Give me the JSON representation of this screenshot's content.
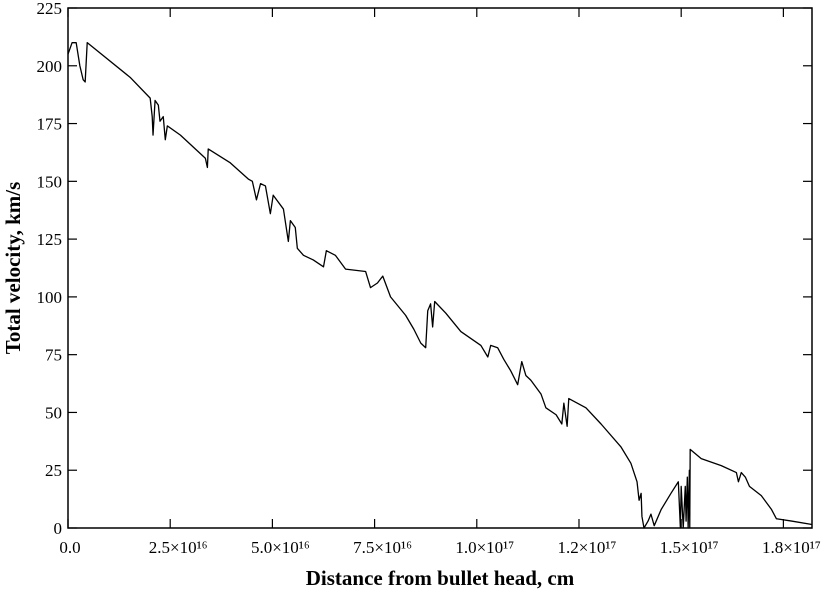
{
  "chart_data": {
    "type": "line",
    "x_label": "Distance from bullet head, cm",
    "y_label": "Total velocity, km/s",
    "color": "#000000",
    "xlim": [
      0,
      1.82e+17
    ],
    "ylim": [
      0,
      225
    ],
    "xticks": [
      {
        "value": 0,
        "label": "0.0"
      },
      {
        "value": 2.5e+16,
        "label": "2.5×10¹⁶"
      },
      {
        "value": 5e+16,
        "label": "5.0×10¹⁶"
      },
      {
        "value": 7.5e+16,
        "label": "7.5×10¹⁶"
      },
      {
        "value": 1e+17,
        "label": "1.0×10¹⁷"
      },
      {
        "value": 1.25e+17,
        "label": "1.2×10¹⁷"
      },
      {
        "value": 1.5e+17,
        "label": "1.5×10¹⁷"
      },
      {
        "value": 1.75e+17,
        "label": "1.8×10¹⁷"
      }
    ],
    "yticks": [
      0,
      25,
      50,
      75,
      100,
      125,
      150,
      175,
      200,
      225
    ],
    "x": [
      0,
      1000000000000000.0,
      2000000000000000.0,
      2900000000000000.0,
      3700000000000000.0,
      4200000000000000.0,
      4700000000000000.0,
      1.52e+16,
      2.01e+16,
      2.06e+16,
      2.08e+16,
      2.13e+16,
      2.21e+16,
      2.25e+16,
      2.33e+16,
      2.38e+16,
      2.43e+16,
      2.75e+16,
      3.36e+16,
      3.41e+16,
      3.43e+16,
      3.97e+16,
      4.41e+16,
      4.51e+16,
      4.61e+16,
      4.71e+16,
      4.83e+16,
      4.95e+16,
      5.02e+16,
      5.27e+16,
      5.39e+16,
      5.44e+16,
      5.56e+16,
      5.61e+16,
      5.76e+16,
      6e+16,
      6.25e+16,
      6.32e+16,
      6.54e+16,
      6.79e+16,
      7.28e+16,
      7.4e+16,
      7.57e+16,
      7.7e+16,
      7.89e+16,
      8.26e+16,
      8.46e+16,
      8.63e+16,
      8.75e+16,
      8.8e+16,
      8.87e+16,
      8.92e+16,
      8.97e+16,
      9.24e+16,
      9.61e+16,
      1.01e+17,
      1.027e+17,
      1.034e+17,
      1.051e+17,
      1.066e+17,
      1.083e+17,
      1.1e+17,
      1.11e+17,
      1.12e+17,
      1.132e+17,
      1.157e+17,
      1.169e+17,
      1.194e+17,
      1.208e+17,
      1.213e+17,
      1.221e+17,
      1.225e+17,
      1.267e+17,
      1.304e+17,
      1.353e+17,
      1.377e+17,
      1.392e+17,
      1.397e+17,
      1.402e+17,
      1.404e+17,
      1.409e+17,
      1.419e+17,
      1.426e+17,
      1.434e+17,
      1.451e+17,
      1.475e+17,
      1.493e+17,
      1.498e+17,
      1.5e+17,
      1.505e+17,
      1.51e+17,
      1.512e+17,
      1.515e+17,
      1.517e+17,
      1.52e+17,
      1.521e+17,
      1.522e+17,
      1.549e+17,
      1.598e+17,
      1.635e+17,
      1.64e+17,
      1.647e+17,
      1.657e+17,
      1.667e+17,
      1.696e+17,
      1.721e+17,
      1.733e+17,
      1.77e+17,
      1.82e+17
    ],
    "values": [
      205,
      210,
      210,
      200,
      194,
      193,
      210,
      195,
      186,
      178,
      170,
      185,
      183,
      176,
      178,
      168,
      174,
      170,
      160,
      156,
      164,
      158,
      151,
      150,
      142,
      149,
      148,
      136,
      144,
      138,
      124,
      133,
      130,
      121,
      118,
      116,
      113,
      120,
      118,
      112,
      111,
      104,
      106,
      109,
      100,
      92,
      86,
      80,
      78,
      94,
      97,
      87,
      98,
      93,
      85,
      79,
      74,
      79,
      78,
      73,
      68,
      62,
      72,
      66,
      64,
      58,
      52,
      49,
      45,
      54,
      44,
      56,
      52,
      45,
      35,
      28,
      20,
      12,
      15,
      5,
      0,
      3,
      6,
      1,
      8,
      15,
      20,
      0,
      18,
      0,
      18,
      3,
      22,
      0,
      25,
      0,
      34,
      30,
      27,
      24,
      20,
      24,
      22,
      18,
      14,
      8,
      4,
      3,
      1.5
    ]
  }
}
